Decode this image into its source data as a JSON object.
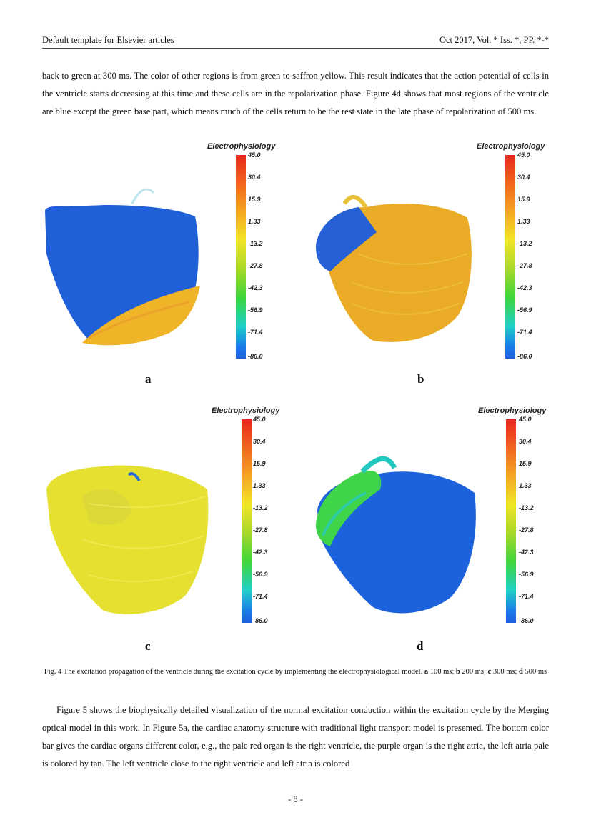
{
  "header": {
    "left": "Default template for Elsevier articles",
    "right": "Oct 2017, Vol. * Iss. *, PP. *-*"
  },
  "paragraph1": "back to green at 300 ms. The color of other regions is from green to saffron yellow. This result indicates that the action potential of cells in the ventricle starts decreasing at this time and these cells are in the repolarization phase. Figure 4d shows that most regions of the ventricle are blue except the green base part, which means much of the cells return to be the rest state in the late phase of repolarization of 500 ms.",
  "figure": {
    "colorbar_title": "Electrophysiology",
    "colorbar_ticks": [
      "45.0",
      "30.4",
      "15.9",
      "1.33",
      "-13.2",
      "-27.8",
      "-42.3",
      "-56.9",
      "-71.4",
      "-86.0"
    ],
    "panels": [
      {
        "label": "a",
        "main_color": "#1f5fd8",
        "accent_color": "#f0b428"
      },
      {
        "label": "b",
        "main_color": "#eaab26",
        "accent_color": "#2560d6"
      },
      {
        "label": "c",
        "main_color": "#e6e130",
        "accent_color": "#d9d63a"
      },
      {
        "label": "d",
        "main_color": "#1c62dc",
        "accent_color": "#3fd44a"
      }
    ],
    "caption_prefix": "Fig. 4 The excitation propagation of the ventricle during the excitation cycle by implementing the electrophysiological model.",
    "caption_items": [
      {
        "letter": "a",
        "text": "100 ms;"
      },
      {
        "letter": "b",
        "text": "200 ms;"
      },
      {
        "letter": "c",
        "text": "300 ms;"
      },
      {
        "letter": "d",
        "text": "500 ms"
      }
    ]
  },
  "paragraph2": "Figure 5  shows the biophysically detailed visualization of the normal excitation conduction within the excitation cycle by the Merging optical model in this work.  In Figure 5a, the cardiac anatomy structure with traditional light transport model is presented. The bottom color bar gives the cardiac organs different color, e.g., the pale red organ is the right ventricle, the purple organ is the right atria, the left atria pale is colored by tan.  The left ventricle close to the right ventricle and left atria is colored",
  "footer": "- 8 -"
}
